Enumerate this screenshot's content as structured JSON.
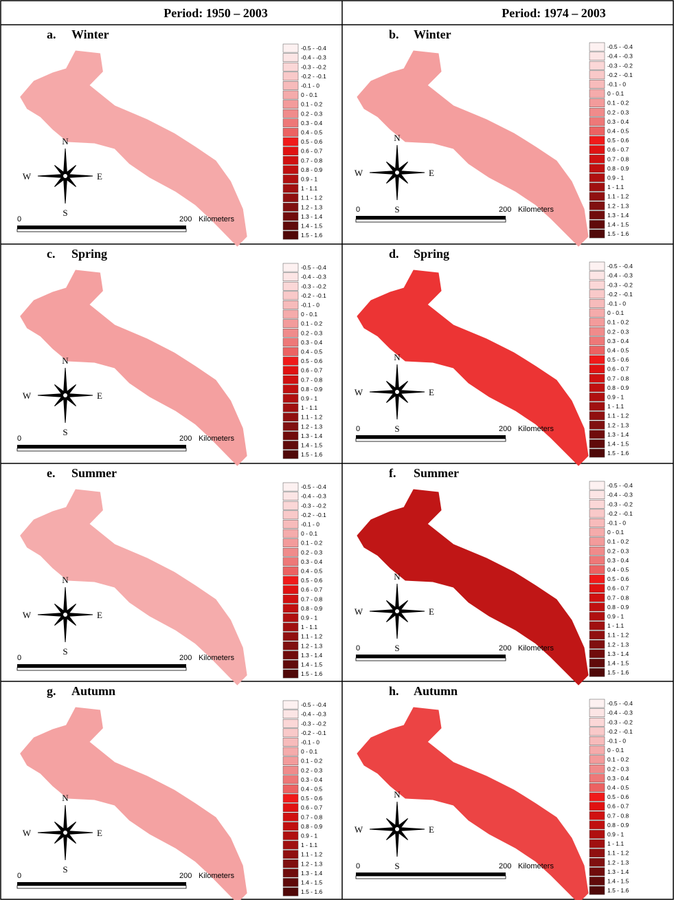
{
  "header": [
    "Period: 1950 – 2003",
    "Period: 1974 – 2003"
  ],
  "panels": [
    {
      "label": "a.",
      "season": "Winter",
      "color": "#f5a9a9"
    },
    {
      "label": "b.",
      "season": "Winter",
      "color": "#f49e9e"
    },
    {
      "label": "c.",
      "season": "Spring",
      "color": "#f4a0a0"
    },
    {
      "label": "d.",
      "season": "Spring",
      "color": "#ec3434"
    },
    {
      "label": "e.",
      "season": "Summer",
      "color": "#f5acac"
    },
    {
      "label": "f.",
      "season": "Summer",
      "color": "#c01616"
    },
    {
      "label": "g.",
      "season": "Autumn",
      "color": "#f4a2a2"
    },
    {
      "label": "h.",
      "season": "Autumn",
      "color": "#ec4444"
    }
  ],
  "legend": [
    {
      "label": "-0.5 - -0.4",
      "color": "#fdf1f1"
    },
    {
      "label": "-0.4 - -0.3",
      "color": "#fce5e5"
    },
    {
      "label": "-0.3 - -0.2",
      "color": "#fbd7d7"
    },
    {
      "label": "-0.2 - -0.1",
      "color": "#f9c9c9"
    },
    {
      "label": "-0.1 - 0",
      "color": "#f7bbbb"
    },
    {
      "label": "0 - 0.1",
      "color": "#f5abab"
    },
    {
      "label": "0.1 - 0.2",
      "color": "#f39b9b"
    },
    {
      "label": "0.2 - 0.3",
      "color": "#f08b8b"
    },
    {
      "label": "0.3 - 0.4",
      "color": "#ee7878"
    },
    {
      "label": "0.4 - 0.5",
      "color": "#ec6262"
    },
    {
      "label": "0.5 - 0.6",
      "color": "#f01a1a"
    },
    {
      "label": "0.6 - 0.7",
      "color": "#e01212"
    },
    {
      "label": "0.7 - 0.8",
      "color": "#d01111"
    },
    {
      "label": "0.8 - 0.9",
      "color": "#c01010"
    },
    {
      "label": "0.9 - 1",
      "color": "#b01010"
    },
    {
      "label": "1 - 1.1",
      "color": "#a01010"
    },
    {
      "label": "1.1 - 1.2",
      "color": "#901010"
    },
    {
      "label": "1.2 - 1.3",
      "color": "#801010"
    },
    {
      "label": "1.3 - 1.4",
      "color": "#700c0c"
    },
    {
      "label": "1.4 - 1.5",
      "color": "#600a0a"
    },
    {
      "label": "1.5 - 1.6",
      "color": "#500808"
    }
  ],
  "compass": {
    "n": "N",
    "s": "S",
    "e": "E",
    "w": "W"
  },
  "scale": {
    "start": 0,
    "end": 200,
    "unit": "Kilometers"
  }
}
